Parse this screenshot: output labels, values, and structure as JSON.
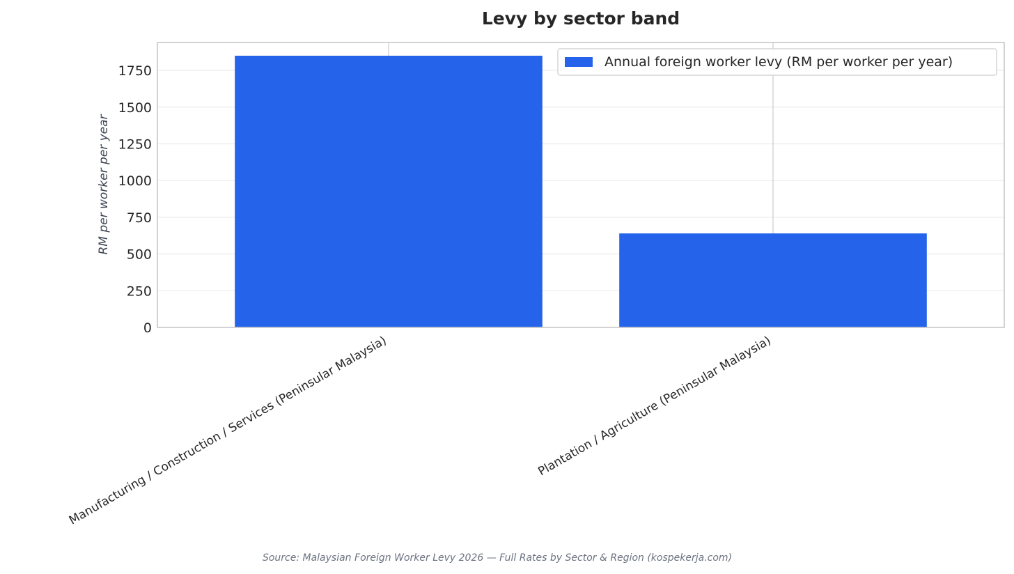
{
  "chart_data": {
    "type": "bar",
    "title": "Levy by sector band",
    "xlabel": "",
    "ylabel": "RM per worker per year",
    "categories": [
      "Manufacturing / Construction / Services (Peninsular Malaysia)",
      "Plantation / Agriculture (Peninsular Malaysia)"
    ],
    "series": [
      {
        "name": "Annual foreign worker levy (RM per worker per year)",
        "values": [
          1850,
          640
        ],
        "color": "#2563eb"
      }
    ],
    "ylim": [
      0,
      1940
    ],
    "yticks": [
      0,
      250,
      500,
      750,
      1000,
      1250,
      1500,
      1750
    ],
    "grid": true,
    "legend_position": "top-right",
    "source": "Source: Malaysian Foreign Worker Levy 2026 — Full Rates by Sector & Region (kospekerja.com)"
  }
}
